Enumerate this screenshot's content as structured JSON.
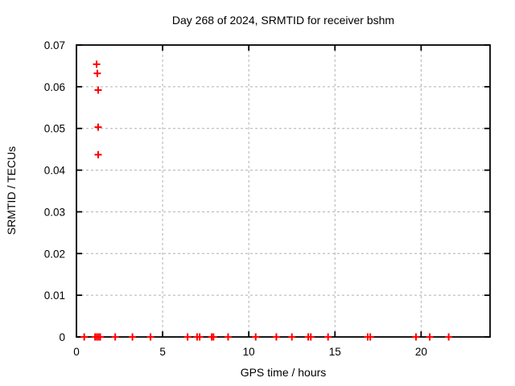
{
  "chart_data": {
    "type": "scatter",
    "title": "Day 268 of 2024, SRMTID for receiver bshm",
    "xlabel": "GPS time / hours",
    "ylabel": "SRMTID / TECUs",
    "xlim": [
      0,
      24
    ],
    "ylim": [
      0,
      0.07
    ],
    "xticks": {
      "values": [
        0,
        5,
        10,
        15,
        20
      ],
      "labels": [
        "0",
        "5",
        "10",
        "15",
        "20"
      ]
    },
    "yticks": {
      "values": [
        0,
        0.01,
        0.02,
        0.03,
        0.04,
        0.05,
        0.06,
        0.07
      ],
      "labels": [
        "0",
        "0.01",
        "0.02",
        "0.03",
        "0.04",
        "0.05",
        "0.06",
        "0.07"
      ]
    },
    "grid": true,
    "legend_position": "none",
    "marker": {
      "shape": "plus",
      "color": "#ff0000",
      "size": 9
    },
    "series": [
      {
        "name": "SRMTID",
        "points": [
          [
            1.17,
            0.0654
          ],
          [
            1.21,
            0.0632
          ],
          [
            1.26,
            0.0592
          ],
          [
            1.26,
            0.0503
          ],
          [
            1.26,
            0.0437
          ],
          [
            0.45,
            0
          ],
          [
            1.08,
            0
          ],
          [
            1.18,
            0
          ],
          [
            1.28,
            0
          ],
          [
            1.38,
            0
          ],
          [
            2.25,
            0
          ],
          [
            3.25,
            0
          ],
          [
            4.3,
            0
          ],
          [
            6.45,
            0
          ],
          [
            7.0,
            0
          ],
          [
            7.15,
            0
          ],
          [
            7.85,
            0
          ],
          [
            7.95,
            0
          ],
          [
            8.8,
            0
          ],
          [
            10.4,
            0
          ],
          [
            11.6,
            0
          ],
          [
            12.5,
            0
          ],
          [
            13.45,
            0
          ],
          [
            13.6,
            0
          ],
          [
            14.6,
            0
          ],
          [
            16.9,
            0
          ],
          [
            17.05,
            0
          ],
          [
            19.7,
            0
          ],
          [
            20.5,
            0
          ],
          [
            21.6,
            0
          ]
        ]
      }
    ]
  },
  "colors": {
    "marker": "#ff0000",
    "grid": "#b0b0b0",
    "border": "#000000",
    "background": "#ffffff",
    "text": "#000000"
  }
}
